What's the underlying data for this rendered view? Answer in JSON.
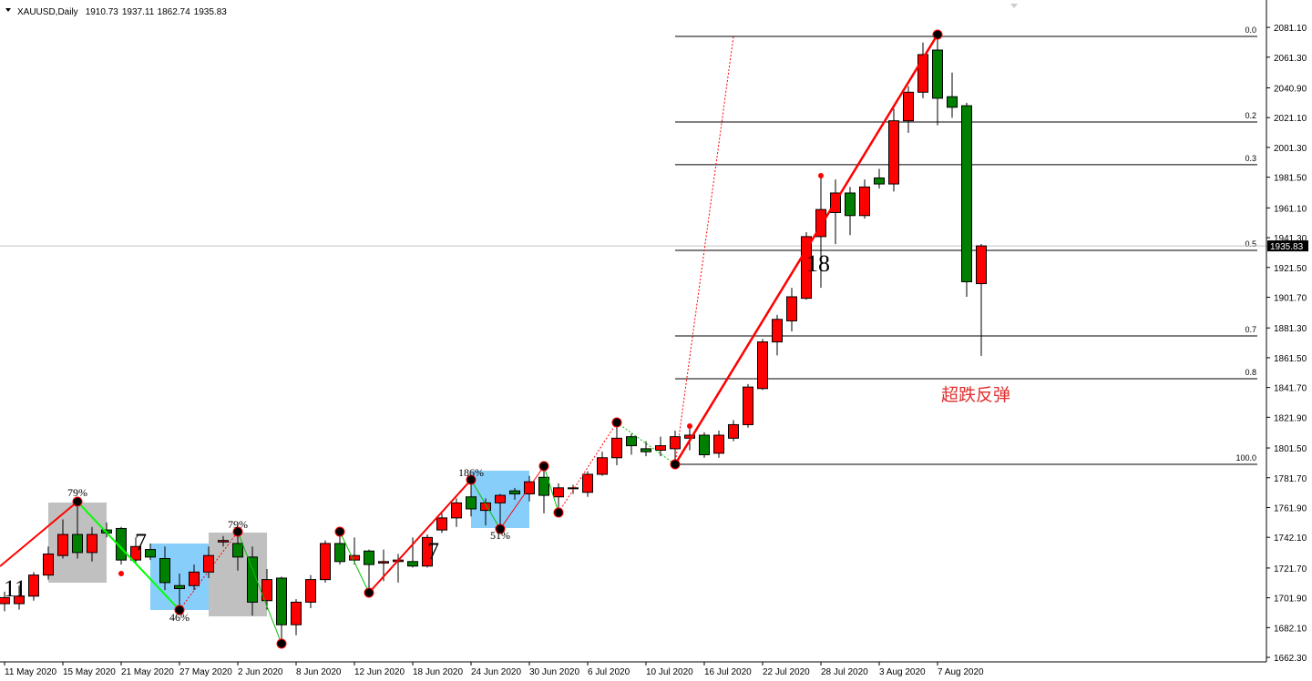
{
  "chart_data": {
    "type": "candlestick",
    "title": "XAUUSD,Daily",
    "header_values": [
      "1910.73",
      "1937.11",
      "1862.74",
      "1935.83"
    ],
    "categories": [
      "11 May 2020",
      null,
      null,
      null,
      "15 May 2020",
      null,
      null,
      null,
      "21 May 2020",
      null,
      null,
      null,
      "27 May 2020",
      null,
      null,
      null,
      "2 Jun 2020",
      null,
      null,
      null,
      "8 Jun 2020",
      null,
      null,
      null,
      "12 Jun 2020",
      null,
      null,
      null,
      "18 Jun 2020",
      null,
      null,
      null,
      "24 Jun 2020",
      null,
      null,
      null,
      "30 Jun 2020",
      null,
      null,
      null,
      "6 Jul 2020",
      null,
      null,
      null,
      "10 Jul 2020",
      null,
      null,
      null,
      "16 Jul 2020",
      null,
      null,
      null,
      "22 Jul 2020",
      null,
      null,
      null,
      "28 Jul 2020",
      null,
      null,
      null,
      "3 Aug 2020",
      null,
      null,
      null,
      "7 Aug 2020",
      null,
      null,
      null
    ],
    "open": [
      1698,
      1698,
      1703,
      1717,
      1730,
      1744,
      1732,
      1747,
      1748,
      1727,
      1734,
      1728,
      1710,
      1710,
      1719,
      1739,
      1738,
      1729,
      1700,
      1715,
      1684,
      1699,
      1714,
      1738,
      1727,
      1733,
      1725,
      1726,
      1726,
      1723,
      1747,
      1755,
      1769,
      1760,
      1765,
      1773,
      1771,
      1782,
      1769,
      1774.5,
      1772,
      1784,
      1795,
      1809,
      1801,
      1800,
      1801,
      1808,
      1810,
      1798,
      1808,
      1817,
      1841,
      1872,
      1886,
      1901,
      1942,
      1958,
      1971,
      1956,
      1981,
      1977,
      2019,
      2038,
      2066,
      2035,
      2029,
      1910.73
    ],
    "high": [
      1706,
      1710,
      1719,
      1736,
      1754,
      1766,
      1749,
      1752,
      1749,
      1742,
      1738,
      1736,
      1718,
      1724,
      1736,
      1743,
      1746,
      1736,
      1721,
      1716,
      1701,
      1717,
      1740,
      1746,
      1742,
      1734,
      1734,
      1731,
      1742,
      1744,
      1758,
      1768,
      1780,
      1768,
      1771,
      1775,
      1783,
      1789,
      1778,
      1777,
      1786,
      1799,
      1819,
      1811,
      1806,
      1809,
      1813,
      1815,
      1812,
      1813,
      1820,
      1844,
      1874,
      1890,
      1908,
      1945,
      1983,
      1980,
      1975,
      1980,
      1987,
      2027,
      2042,
      2071,
      2075,
      2051,
      2031,
      1937.11
    ],
    "low": [
      1693,
      1694,
      1700,
      1714,
      1728,
      1728,
      1726,
      1742,
      1724,
      1724,
      1727,
      1707,
      1693,
      1707,
      1715,
      1736,
      1720,
      1690,
      1694,
      1671,
      1677,
      1695,
      1712,
      1724,
      1724,
      1705,
      1713,
      1712,
      1722,
      1722,
      1745,
      1749,
      1756,
      1750,
      1748,
      1767,
      1766,
      1758,
      1758,
      1771,
      1769,
      1783,
      1790,
      1797,
      1796,
      1796,
      1790,
      1800,
      1795,
      1795,
      1806,
      1815,
      1840,
      1863,
      1879,
      1900,
      1908,
      1937,
      1943,
      1954,
      1974,
      1972,
      2011,
      2034,
      2016,
      2021,
      1902,
      1862.74
    ],
    "close": [
      1702,
      1703,
      1717,
      1731,
      1744,
      1732,
      1744,
      1745,
      1727,
      1736,
      1729,
      1712,
      1708,
      1719,
      1730,
      1740,
      1729,
      1699,
      1714,
      1684,
      1699,
      1714,
      1738,
      1726,
      1730,
      1724,
      1726,
      1727,
      1723,
      1742,
      1755,
      1765,
      1761,
      1765,
      1770,
      1771,
      1779,
      1770,
      1775,
      1775,
      1784,
      1795,
      1808,
      1803,
      1799,
      1803,
      1809,
      1810,
      1797,
      1810,
      1817,
      1842,
      1872,
      1887,
      1902,
      1942,
      1960,
      1971,
      1956,
      1975,
      1977,
      2019,
      2038,
      2063,
      2034,
      2028,
      1912,
      1935.83
    ],
    "up_color": "#ff0000",
    "down_color": "#008000",
    "ylim": [
      1659.3,
      2099.3
    ],
    "yticks": [
      {
        "value": 1662.3,
        "label": "1662.30"
      },
      {
        "value": 1682.1,
        "label": "1682.10"
      },
      {
        "value": 1701.9,
        "label": "1701.90"
      },
      {
        "value": 1721.7,
        "label": "1721.70"
      },
      {
        "value": 1742.1,
        "label": "1742.10"
      },
      {
        "value": 1761.9,
        "label": "1761.90"
      },
      {
        "value": 1781.7,
        "label": "1781.70"
      },
      {
        "value": 1801.5,
        "label": "1801.50"
      },
      {
        "value": 1821.9,
        "label": "1821.90"
      },
      {
        "value": 1841.7,
        "label": "1841.70"
      },
      {
        "value": 1861.5,
        "label": "1861.50"
      },
      {
        "value": 1881.3,
        "label": "1881.30"
      },
      {
        "value": 1901.7,
        "label": "1901.70"
      },
      {
        "value": 1921.5,
        "label": "1921.50"
      },
      {
        "value": 1941.3,
        "label": "1941.30"
      },
      {
        "value": 1961.1,
        "label": "1961.10"
      },
      {
        "value": 1981.5,
        "label": "1981.50"
      },
      {
        "value": 2001.3,
        "label": "2001.30"
      },
      {
        "value": 2021.1,
        "label": "2021.10"
      },
      {
        "value": 2040.9,
        "label": "2040.90"
      },
      {
        "value": 2061.3,
        "label": "2061.30"
      },
      {
        "value": 2081.1,
        "label": "2081.10"
      }
    ],
    "last_price": {
      "value": 1935.83,
      "label": "1935.83"
    },
    "fibonacci": [
      {
        "value": 2075.1,
        "label": "0.0"
      },
      {
        "value": 2018.2,
        "label": "0.2"
      },
      {
        "value": 1989.8,
        "label": "0.3"
      },
      {
        "value": 1932.9,
        "label": "0.5"
      },
      {
        "value": 1876.0,
        "label": "0.7"
      },
      {
        "value": 1847.5,
        "label": "0.8"
      },
      {
        "value": 1790.6,
        "label": "100.0"
      }
    ],
    "annotations": [
      "79%",
      "46%",
      "79%",
      "186%",
      "51%",
      "11",
      "7",
      "7",
      "18",
      "超跌反弹"
    ]
  }
}
